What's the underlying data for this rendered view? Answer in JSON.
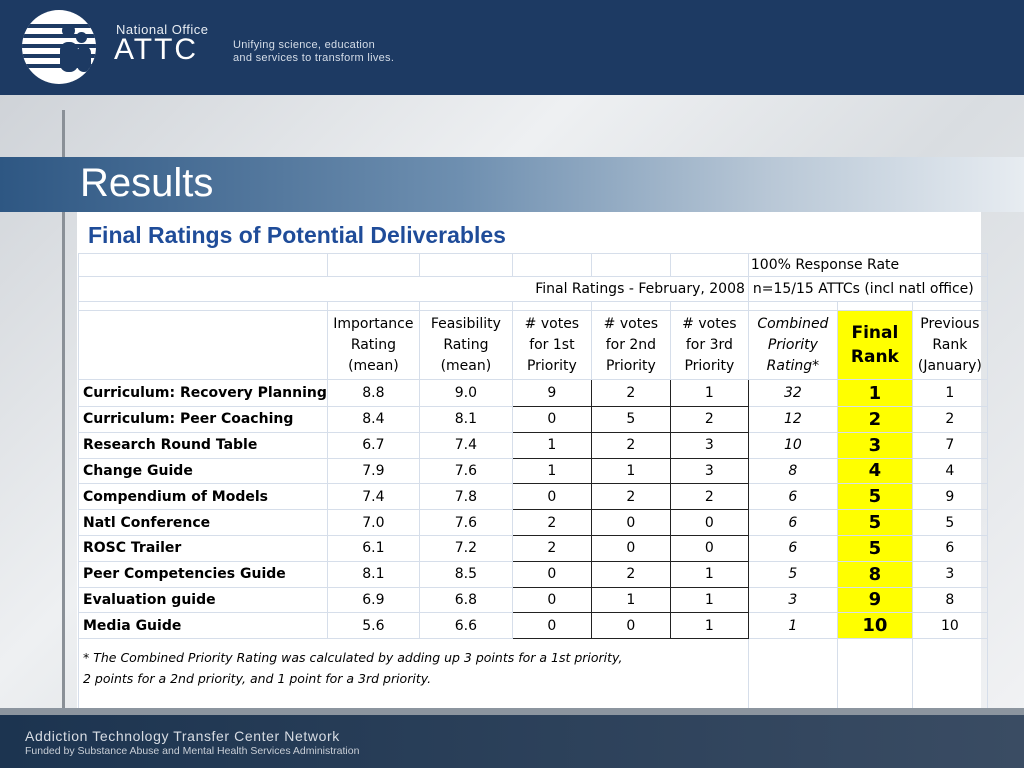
{
  "header": {
    "org_small": "National Office",
    "org_big": "ATTC",
    "tagline_1": "Unifying science, education",
    "tagline_2": "and services to transform lives."
  },
  "page_title": "Results",
  "subtitle": "Final Ratings of Potential Deliverables",
  "table": {
    "response_rate": "100% Response Rate",
    "final_ratings_date": "Final Ratings - February, 2008",
    "response_n": "n=15/15 ATTCs (incl natl office)",
    "headers": {
      "importance": [
        "Importance",
        "Rating",
        "(mean)"
      ],
      "feasibility": [
        "Feasibility",
        "Rating",
        "(mean)"
      ],
      "votes1": [
        "# votes",
        "for 1st",
        "Priority"
      ],
      "votes2": [
        "# votes",
        "for 2nd",
        "Priority"
      ],
      "votes3": [
        "# votes",
        "for 3rd",
        "Priority"
      ],
      "combined": [
        "Combined",
        "Priority",
        "Rating*"
      ],
      "final": [
        "Final",
        "Rank"
      ],
      "previous": [
        "Previous",
        "Rank",
        "(January)"
      ]
    },
    "rows": [
      {
        "name": "Curriculum: Recovery Planning",
        "importance": "8.8",
        "feasibility": "9.0",
        "v1": "9",
        "v2": "2",
        "v3": "1",
        "combined": "32",
        "final": "1",
        "previous": "1"
      },
      {
        "name": "Curriculum: Peer Coaching",
        "importance": "8.4",
        "feasibility": "8.1",
        "v1": "0",
        "v2": "5",
        "v3": "2",
        "combined": "12",
        "final": "2",
        "previous": "2"
      },
      {
        "name": "Research Round Table",
        "importance": "6.7",
        "feasibility": "7.4",
        "v1": "1",
        "v2": "2",
        "v3": "3",
        "combined": "10",
        "final": "3",
        "previous": "7"
      },
      {
        "name": "Change Guide",
        "importance": "7.9",
        "feasibility": "7.6",
        "v1": "1",
        "v2": "1",
        "v3": "3",
        "combined": "8",
        "final": "4",
        "previous": "4"
      },
      {
        "name": "Compendium of Models",
        "importance": "7.4",
        "feasibility": "7.8",
        "v1": "0",
        "v2": "2",
        "v3": "2",
        "combined": "6",
        "final": "5",
        "previous": "9"
      },
      {
        "name": "Natl Conference",
        "importance": "7.0",
        "feasibility": "7.6",
        "v1": "2",
        "v2": "0",
        "v3": "0",
        "combined": "6",
        "final": "5",
        "previous": "5"
      },
      {
        "name": "ROSC Trailer",
        "importance": "6.1",
        "feasibility": "7.2",
        "v1": "2",
        "v2": "0",
        "v3": "0",
        "combined": "6",
        "final": "5",
        "previous": "6"
      },
      {
        "name": "Peer Competencies Guide",
        "importance": "8.1",
        "feasibility": "8.5",
        "v1": "0",
        "v2": "2",
        "v3": "1",
        "combined": "5",
        "final": "8",
        "previous": "3"
      },
      {
        "name": "Evaluation guide",
        "importance": "6.9",
        "feasibility": "6.8",
        "v1": "0",
        "v2": "1",
        "v3": "1",
        "combined": "3",
        "final": "9",
        "previous": "8"
      },
      {
        "name": "Media Guide",
        "importance": "5.6",
        "feasibility": "6.6",
        "v1": "0",
        "v2": "0",
        "v3": "1",
        "combined": "1",
        "final": "10",
        "previous": "10"
      }
    ],
    "footnote_1": "* The Combined Priority Rating  was calculated by adding up 3 points for a 1st priority,",
    "footnote_2": "2 points for a 2nd priority, and 1 point for a 3rd priority."
  },
  "footer": {
    "line1": "Addiction Technology Transfer Center Network",
    "line2": "Funded by Substance Abuse and Mental Health Services Administration"
  },
  "colors": {
    "header_bg": "#1d3a63",
    "subtitle_blue": "#1f4c99",
    "final_rank_highlight": "#ffff00"
  },
  "icons": {
    "logo": "attc-people-globe-logo"
  }
}
